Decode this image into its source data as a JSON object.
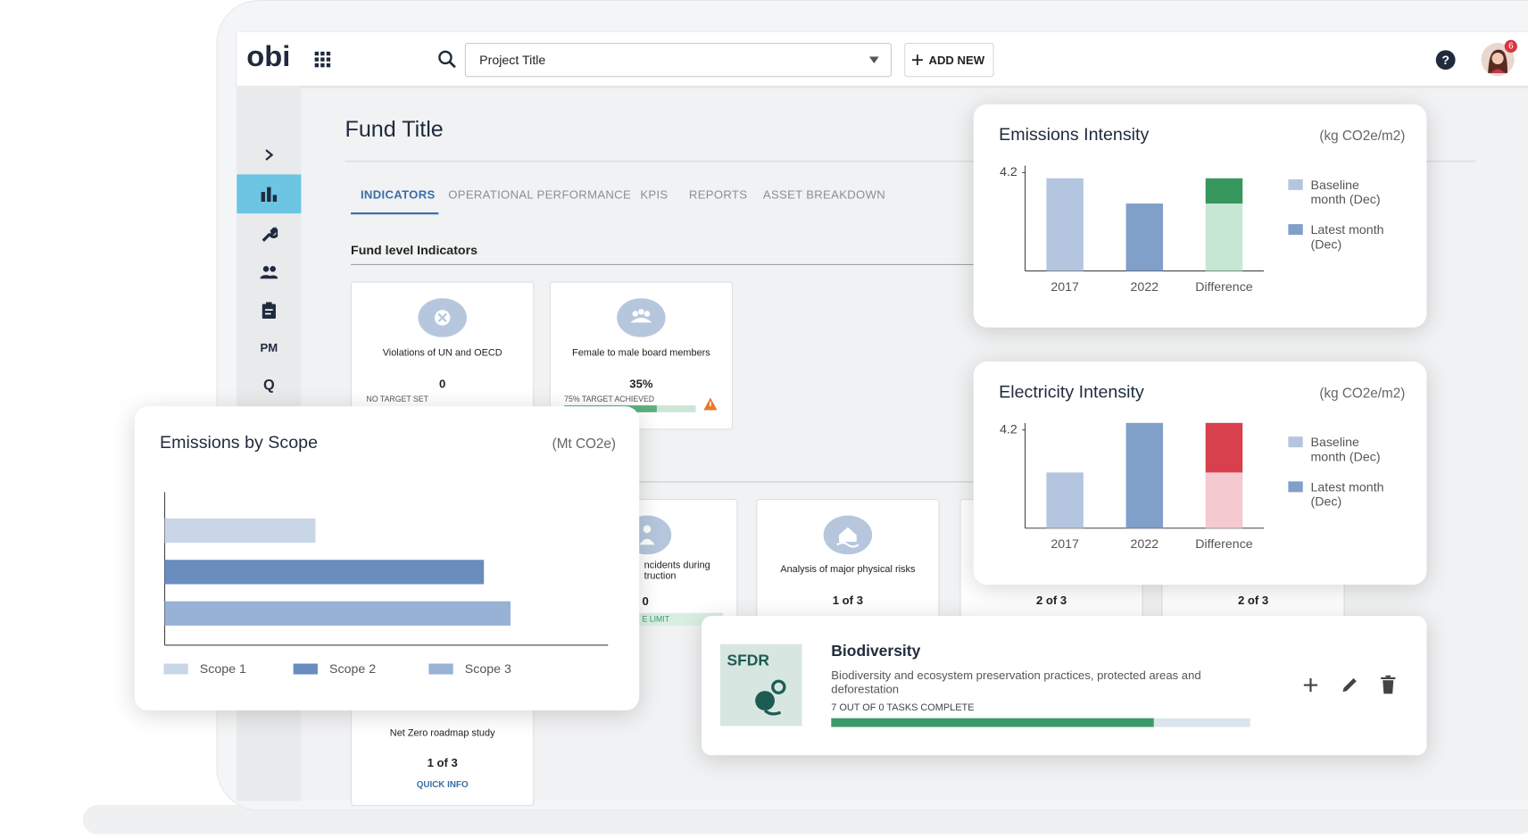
{
  "header": {
    "logo": "obi",
    "project_select": "Project Title",
    "add_button": "ADD NEW",
    "notification_count": "6"
  },
  "sidebar": {
    "items": [
      "PM",
      "Q"
    ]
  },
  "page": {
    "title": "Fund Title",
    "tabs": [
      "INDICATORS",
      "OPERATIONAL PERFORMANCE",
      "KPIS",
      "REPORTS",
      "ASSET BREAKDOWN"
    ],
    "section_title": "Fund level Indicators",
    "cards": [
      {
        "label": "Violations of UN and OECD",
        "value": "0",
        "status": "NO TARGET SET"
      },
      {
        "label": "Female to male board members",
        "value": "35%",
        "status": "75% TARGET ACHIEVED"
      },
      {
        "label_lines": [
          "ncidents during",
          "truction"
        ],
        "value": "0",
        "status": "E LIMIT"
      },
      {
        "label": "Analysis of major physical risks",
        "value": "1 of 3"
      },
      {
        "value": "2 of 3"
      },
      {
        "value": "2 of 3"
      },
      {
        "label": "Net Zero roadmap study",
        "value": "1 of 3",
        "link": "QUICK INFO"
      }
    ]
  },
  "sfdr": {
    "badge": "SFDR",
    "title": "Biodiversity",
    "description": "Biodiversity and ecosystem preservation practices, protected areas and deforestation",
    "progress": "7 OUT OF 0 TASKS COMPLETE"
  },
  "chart_data": [
    {
      "type": "bar",
      "title": "Emissions Intensity",
      "unit": "(kg CO2e/m2)",
      "categories": [
        "2017",
        "2022",
        "Difference"
      ],
      "series": [
        {
          "name": "Baseline month (Dec)",
          "color": "#b4c6df",
          "values": [
            3.96,
            null,
            null
          ]
        },
        {
          "name": "Latest month (Dec)",
          "color": "#809fc9",
          "values": [
            null,
            2.88,
            null
          ]
        }
      ],
      "difference_segments": [
        {
          "value": 2.88,
          "color": "#c5e7d3"
        },
        {
          "value": 1.08,
          "color": "#36975e"
        }
      ],
      "ylim": [
        0,
        4.5
      ],
      "yticks": [
        4.2
      ]
    },
    {
      "type": "bar",
      "title": "Electricity Intensity",
      "unit": "(kg CO2e/m2)",
      "categories": [
        "2017",
        "2022",
        "Difference"
      ],
      "series": [
        {
          "name": "Baseline month (Dec)",
          "color": "#b4c6df",
          "values": [
            2.38,
            null,
            null
          ]
        },
        {
          "name": "Latest month (Dec)",
          "color": "#809fc9",
          "values": [
            null,
            4.5,
            null
          ]
        }
      ],
      "difference_segments": [
        {
          "value": 2.38,
          "color": "#f4c9d0"
        },
        {
          "value": 2.12,
          "color": "#d8404d"
        }
      ],
      "ylim": [
        0,
        4.5
      ],
      "yticks": [
        4.2
      ]
    },
    {
      "type": "bar",
      "orientation": "horizontal",
      "title": "Emissions by Scope",
      "unit": "(Mt CO2e)",
      "series": [
        {
          "name": "Scope 1",
          "color": "#c9d6e7",
          "values": [
            34
          ]
        },
        {
          "name": "Scope 2",
          "color": "#6a8dbf",
          "values": [
            72
          ]
        },
        {
          "name": "Scope 3",
          "color": "#98b2d6",
          "values": [
            78
          ]
        }
      ],
      "xlim": [
        0,
        100
      ]
    }
  ]
}
